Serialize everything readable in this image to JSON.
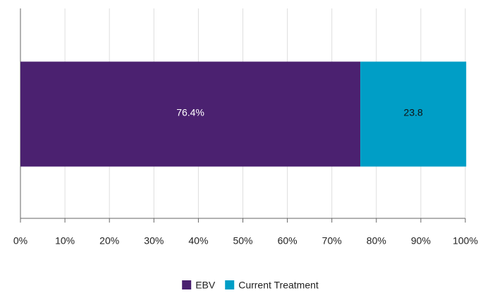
{
  "chart_data": {
    "type": "bar",
    "orientation": "horizontal",
    "stacked": true,
    "categories": [
      null
    ],
    "series": [
      {
        "name": "EBV",
        "color": "#4b2170",
        "values": [
          76.4
        ],
        "value_labels": [
          "76.4%"
        ],
        "label_color": "#ffffff"
      },
      {
        "name": "Current Treatment",
        "color": "#009ec6",
        "values": [
          23.8
        ],
        "label_color": "#111111"
      }
    ],
    "xlim": [
      0,
      100
    ],
    "xticks": [
      {
        "value": 0,
        "label": "0%"
      },
      {
        "value": 10,
        "label": "10%"
      },
      {
        "value": 20,
        "label": "20%"
      },
      {
        "value": 30,
        "label": "30%"
      },
      {
        "value": 40,
        "label": "40%"
      },
      {
        "value": 50,
        "label": "50%"
      },
      {
        "value": 60,
        "label": "60%"
      },
      {
        "value": 70,
        "label": "70%"
      },
      {
        "value": 80,
        "label": "80%"
      },
      {
        "value": 90,
        "label": "90%"
      },
      {
        "value": 100,
        "label": "100%"
      }
    ],
    "grid": true,
    "legend": "bottom"
  }
}
